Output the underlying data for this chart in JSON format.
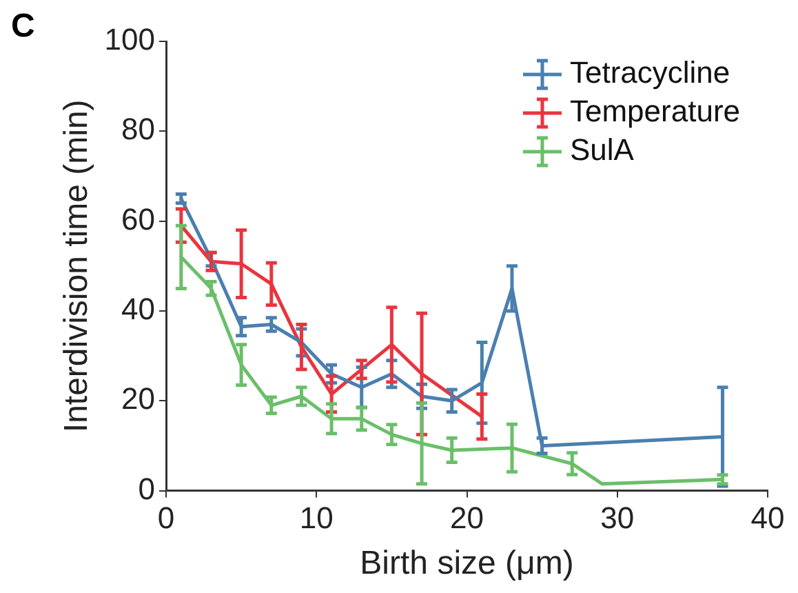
{
  "chart_data": {
    "type": "line",
    "xlabel": "Birth size (μm)",
    "ylabel": "Interdivision time (min)",
    "annotations": [
      "C"
    ],
    "xlim": [
      0,
      40
    ],
    "xticks": [
      0,
      10,
      20,
      30,
      40
    ],
    "ylim": [
      0,
      100
    ],
    "yticks": [
      0,
      20,
      40,
      60,
      80,
      100
    ],
    "grid": false,
    "legend": "top right",
    "marker": "none",
    "line_style": "solid",
    "series": [
      {
        "name": "Tetracycline",
        "color": "#4a7fb0",
        "x": [
          1,
          3,
          5,
          7,
          9,
          11,
          13,
          15,
          17,
          19,
          21,
          23,
          25,
          37
        ],
        "values": [
          65,
          51.5,
          36.5,
          37,
          33,
          26,
          23,
          26,
          21,
          20,
          24,
          45,
          10,
          12
        ],
        "errors": [
          1,
          1.5,
          2,
          1.5,
          3,
          2,
          4.5,
          3,
          2.7,
          2.5,
          9,
          5,
          1.7,
          11
        ]
      },
      {
        "name": "Temperature",
        "color": "#e8353e",
        "x": [
          1,
          3,
          5,
          7,
          9,
          11,
          13,
          15,
          17,
          21
        ],
        "values": [
          59,
          51,
          50.5,
          46,
          32,
          21.5,
          27,
          32.5,
          26,
          16.5
        ],
        "errors": [
          3.7,
          2,
          7.5,
          4.7,
          5,
          4,
          2,
          8.3,
          13.5,
          5
        ]
      },
      {
        "name": "SulA",
        "color": "#6abf69",
        "x": [
          1,
          3,
          5,
          7,
          9,
          11,
          13,
          15,
          17,
          19,
          23,
          27,
          29,
          37
        ],
        "values": [
          52,
          45,
          28,
          19,
          21,
          16,
          16,
          12.5,
          10.5,
          9,
          9.5,
          6,
          1.5,
          2.5
        ],
        "errors": [
          7,
          1.5,
          4.5,
          1.8,
          2,
          3.3,
          2.5,
          2.2,
          9,
          2.7,
          5.3,
          2.4,
          null,
          1
        ]
      }
    ]
  }
}
